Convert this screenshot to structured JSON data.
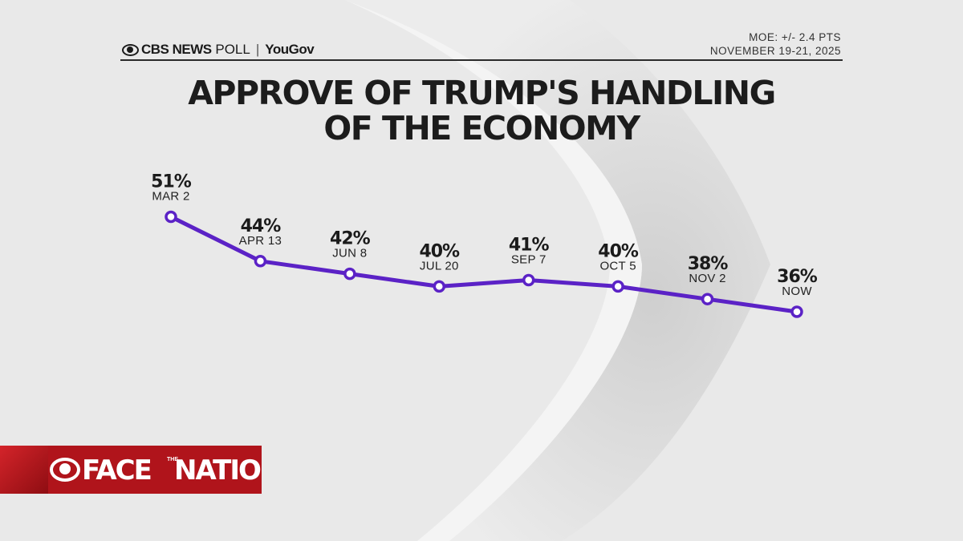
{
  "header": {
    "brand_cbs": "CBS NEWS",
    "brand_poll": "POLL",
    "brand_partner": "YouGov",
    "moe": "MOE: +/- 2.4 PTS",
    "dates": "NOVEMBER 19-21, 2025"
  },
  "title_line1": "APPROVE OF TRUMP'S HANDLING",
  "title_line2": "OF THE ECONOMY",
  "chart_data": {
    "type": "line",
    "title": "APPROVE OF TRUMP'S HANDLING OF THE ECONOMY",
    "categories": [
      "MAR 2",
      "APR 13",
      "JUN 8",
      "JUL 20",
      "SEP 7",
      "OCT 5",
      "NOV 2",
      "NOW"
    ],
    "series": [
      {
        "values": [
          51,
          44,
          42,
          40,
          41,
          40,
          38,
          36
        ]
      }
    ],
    "value_labels": [
      "51%",
      "44%",
      "42%",
      "40%",
      "41%",
      "40%",
      "38%",
      "36%"
    ],
    "grid": false,
    "line_color": "#5b22c6",
    "marker_fill": "#ffffff"
  },
  "logo": {
    "face": "FACE",
    "the": "THE",
    "nation": "NATION",
    "color": "#b0141b"
  }
}
